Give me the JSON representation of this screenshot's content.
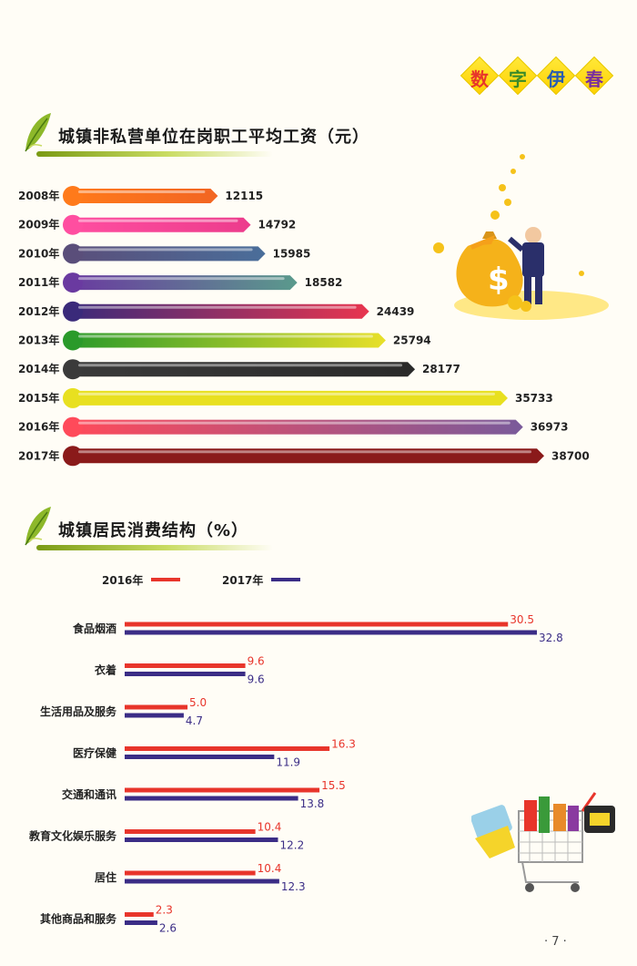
{
  "badge": {
    "chars": [
      "数",
      "字",
      "伊",
      "春"
    ],
    "colors": [
      "#e8352b",
      "#3a8a2a",
      "#2a5db0",
      "#7a2f9e"
    ]
  },
  "section1": {
    "title": "城镇非私营单位在岗职工平均工资（元）"
  },
  "section2": {
    "title": "城镇居民消费结构（%）"
  },
  "page_number": "· 7 ·",
  "chart_data": [
    {
      "type": "bar",
      "orientation": "horizontal",
      "title": "城镇非私营单位在岗职工平均工资（元）",
      "categories": [
        "2008年",
        "2009年",
        "2010年",
        "2011年",
        "2012年",
        "2013年",
        "2014年",
        "2015年",
        "2016年",
        "2017年"
      ],
      "values": [
        12115,
        14792,
        15985,
        18582,
        24439,
        25794,
        28177,
        35733,
        36973,
        38700
      ],
      "colors": [
        "#f26522",
        "#ec3c8c",
        "#4a6e9a",
        "#5a9a8c",
        "#e8354f",
        "#e8e02a",
        "#2a2a2a",
        "#e8e020",
        "#7a5a9a",
        "#8a1a1a"
      ],
      "start_colors": [
        "#ff7a1a",
        "#ff4ea0",
        "#5a4e7a",
        "#6a3aa0",
        "#3a2a7a",
        "#2a9a2a",
        "#3a3a3a",
        "#e8e020",
        "#ff4a5a",
        "#8a1a1a"
      ]
    },
    {
      "type": "bar",
      "orientation": "horizontal",
      "title": "城镇居民消费结构（%）",
      "categories": [
        "食品烟酒",
        "衣着",
        "生活用品及服务",
        "医疗保健",
        "交通和通讯",
        "教育文化娱乐服务",
        "居住",
        "其他商品和服务"
      ],
      "series": [
        {
          "name": "2016年",
          "color": "#e8352b",
          "values": [
            30.5,
            9.6,
            5.0,
            16.3,
            15.5,
            10.4,
            10.4,
            2.3
          ]
        },
        {
          "name": "2017年",
          "color": "#3b2d86",
          "values": [
            32.8,
            9.6,
            4.7,
            11.9,
            13.8,
            12.2,
            12.3,
            2.6
          ]
        }
      ],
      "legend": "top-left"
    }
  ]
}
